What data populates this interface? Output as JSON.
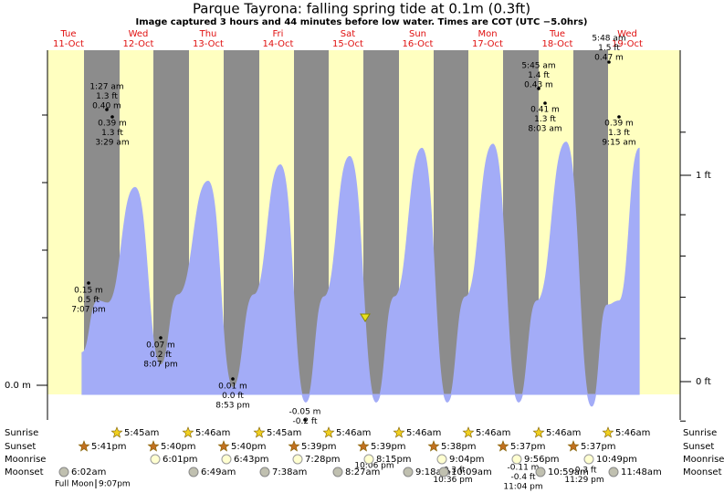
{
  "header": {
    "title": "Parque Tayrona: falling  spring tide at 0.1m (0.3ft)",
    "subtitle": "Image captured 3 hours and 44 minutes before low water. Times are COT (UTC −5.0hrs)"
  },
  "days": [
    {
      "name": "Tue",
      "date": "11-Oct"
    },
    {
      "name": "Wed",
      "date": "12-Oct"
    },
    {
      "name": "Thu",
      "date": "13-Oct"
    },
    {
      "name": "Fri",
      "date": "14-Oct"
    },
    {
      "name": "Sat",
      "date": "15-Oct"
    },
    {
      "name": "Sun",
      "date": "16-Oct"
    },
    {
      "name": "Mon",
      "date": "17-Oct"
    },
    {
      "name": "Tue",
      "date": "18-Oct"
    },
    {
      "name": "Wed",
      "date": "19-Oct"
    }
  ],
  "axis": {
    "left_ticks": [
      {
        "value": 0,
        "label": "0.0 m"
      }
    ],
    "right_ticks": [
      {
        "value": 0,
        "label": "0 ft"
      },
      {
        "value": 1,
        "label": "1 ft"
      }
    ]
  },
  "tide_curve": {
    "hour": [
      17.2,
      22.6,
      26.0,
      35.4,
      44.2,
      50.2,
      60.5,
      69.0,
      76.2,
      85.3,
      94.0,
      100.3,
      109.1,
      118.2,
      124.5,
      133.9,
      142.6,
      148.9,
      158.3,
      167.1,
      173.4,
      183.4,
      192.2,
      197.5,
      201.6,
      208.5
    ],
    "ft": [
      0.15,
      0.4,
      0.39,
      0.95,
      0.09,
      0.43,
      0.98,
      -0.02,
      0.43,
      1.06,
      -0.09,
      0.42,
      1.1,
      -0.09,
      0.42,
      1.14,
      -0.09,
      0.42,
      1.16,
      -0.09,
      0.4,
      1.17,
      -0.11,
      0.38,
      0.4,
      1.14
    ]
  },
  "extremes": [
    {
      "lines": [
        "0.15 m",
        "0.5 ft",
        "7:07 pm"
      ]
    },
    {
      "lines": [
        "1:27 am",
        "1.3 ft",
        "0.40 m"
      ]
    },
    {
      "lines": [
        "0.39 m",
        "1.3 ft",
        "3:29 am"
      ]
    },
    {
      "lines": [
        "0.07 m",
        "0.2 ft",
        "8:07 pm"
      ]
    },
    {
      "lines": [
        "0.01 m",
        "0.0 ft",
        "8:53 pm"
      ]
    },
    {
      "lines": [
        "-0.05 m",
        "-0.2 ft"
      ]
    },
    {
      "lines": [
        "10:06 pm"
      ]
    },
    {
      "lines": [
        "-0.3 ft",
        "10:36 pm"
      ]
    },
    {
      "lines": [
        "-0.11 m",
        "-0.4 ft",
        "11:04 pm"
      ]
    },
    {
      "lines": [
        "-0.3 ft",
        "11:29 pm"
      ]
    },
    {
      "lines": [
        "5:45 am",
        "1.4 ft",
        "0.43 m"
      ]
    },
    {
      "lines": [
        "0.41 m",
        "1.3 ft",
        "8:03 am"
      ]
    },
    {
      "lines": [
        "5:48 am",
        "1.5 ft",
        "0.47 m"
      ]
    },
    {
      "lines": [
        "0.39 m",
        "1.3 ft",
        "9:15 am"
      ]
    }
  ],
  "sun_moon": {
    "rows": [
      "Sunrise",
      "Sunset",
      "Moonrise",
      "Moonset"
    ],
    "sunrise": [
      "5:45am",
      "5:46am",
      "5:45am",
      "5:46am",
      "5:46am",
      "5:46am",
      "5:46am",
      "5:46am"
    ],
    "sunset": [
      "5:41pm",
      "5:40pm",
      "5:40pm",
      "5:39pm",
      "5:39pm",
      "5:38pm",
      "5:37pm",
      "5:37pm"
    ],
    "moonrise": [
      "6:01pm",
      "6:43pm",
      "7:28pm",
      "8:15pm",
      "9:04pm",
      "9:56pm",
      "10:49pm"
    ],
    "moonset": [
      "6:02am",
      "6:49am",
      "7:38am",
      "8:27am",
      "9:18am",
      "10:09am",
      "10:59am",
      "11:48am"
    ]
  },
  "moon_phase": {
    "name": "Full Moon",
    "time": "9:07pm"
  }
}
